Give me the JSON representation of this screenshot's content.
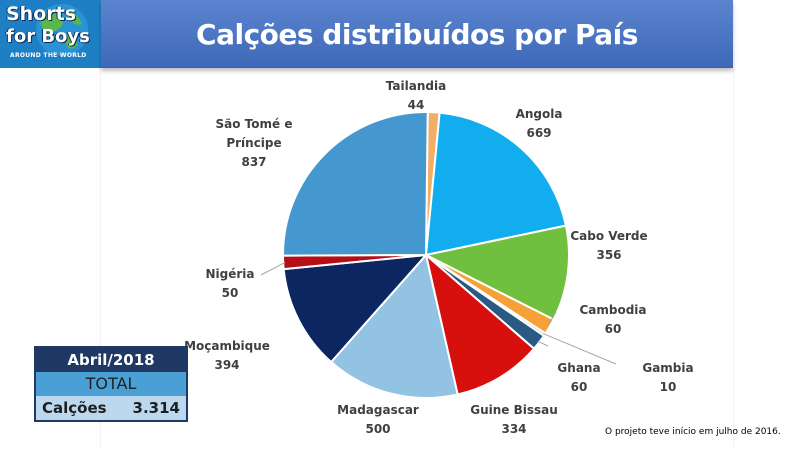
{
  "logo": {
    "line1": "Shorts",
    "line2": "for Boys",
    "line3": "AROUND THE WORLD"
  },
  "title": "Calções distribuídos por País",
  "chart_data": {
    "type": "pie",
    "title": "Calções distribuídos por País",
    "slices": [
      {
        "label": "Tailandia",
        "value": 44,
        "color": "#f2ad66"
      },
      {
        "label": "Angola",
        "value": 669,
        "color": "#12adee"
      },
      {
        "label": "Cabo Verde",
        "value": 356,
        "color": "#70bf3f"
      },
      {
        "label": "Cambodia",
        "value": 60,
        "color": "#f5a138"
      },
      {
        "label": "Gambia",
        "value": 10,
        "color": "#bfbfbf"
      },
      {
        "label": "Ghana",
        "value": 60,
        "color": "#2a5a84"
      },
      {
        "label": "Guine Bissau",
        "value": 334,
        "color": "#d7100e"
      },
      {
        "label": "Madagascar",
        "value": 500,
        "color": "#92c3e2"
      },
      {
        "label": "Moçambique",
        "value": 394,
        "color": "#0b2660"
      },
      {
        "label": "Nigéria",
        "value": 50,
        "color": "#b50e14"
      },
      {
        "label": "São Tomé e Príncipe",
        "value": 837,
        "color": "#4598cf"
      }
    ]
  },
  "summary": {
    "month": "Abril/2018",
    "total_label": "TOTAL",
    "row_label": "Calções",
    "row_value": "3.314"
  },
  "footnote": "O projeto teve início em julho de 2016."
}
